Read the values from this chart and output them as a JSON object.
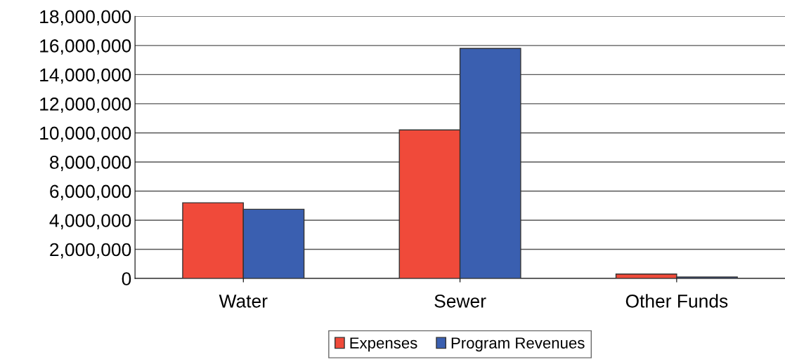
{
  "chart_data": {
    "type": "bar",
    "categories": [
      "Water",
      "Sewer",
      "Other Funds"
    ],
    "series": [
      {
        "name": "Expenses",
        "color": "#f04a3a",
        "values": [
          5200000,
          10200000,
          300000
        ]
      },
      {
        "name": "Program Revenues",
        "color": "#3a5fb0",
        "values": [
          4750000,
          15800000,
          100000
        ]
      }
    ],
    "ylim": [
      0,
      18000000
    ],
    "yticks": [
      {
        "value": 0,
        "label": "0"
      },
      {
        "value": 2000000,
        "label": "2,000,000"
      },
      {
        "value": 4000000,
        "label": "4,000,000"
      },
      {
        "value": 6000000,
        "label": "6,000,000"
      },
      {
        "value": 8000000,
        "label": "8,000,000"
      },
      {
        "value": 10000000,
        "label": "10,000,000"
      },
      {
        "value": 12000000,
        "label": "12,000,000"
      },
      {
        "value": 14000000,
        "label": "14,000,000"
      },
      {
        "value": 16000000,
        "label": "16,000,000"
      },
      {
        "value": 18000000,
        "label": "18,000,000"
      }
    ],
    "grid": "y",
    "legend": "bottom"
  }
}
